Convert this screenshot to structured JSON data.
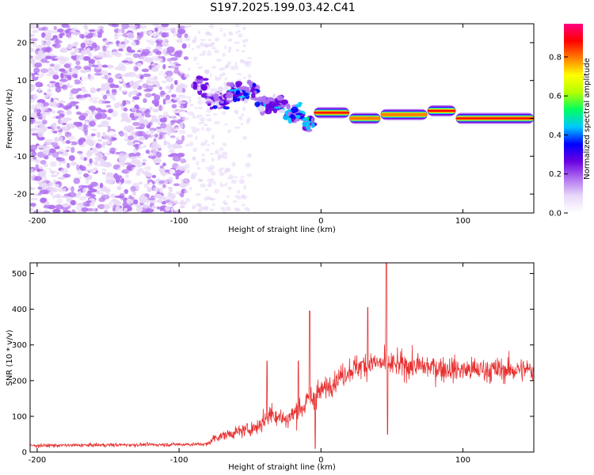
{
  "title": "S197.2025.199.03.42.C41",
  "colorbar": {
    "label": "Normalized spectral amplitude",
    "ticks": [
      0.0,
      0.2,
      0.4,
      0.6,
      0.8
    ],
    "tick_labels": [
      "0.0",
      "0.2",
      "0.4",
      "0.6",
      "0.8"
    ],
    "range": [
      0,
      0.97
    ],
    "colors": [
      "#ffffff",
      "#e8d8f8",
      "#b070f0",
      "#6a00e0",
      "#0000ff",
      "#00c8ff",
      "#00ff60",
      "#b4ff00",
      "#ffff00",
      "#ff8000",
      "#ff0000",
      "#ff0080"
    ]
  },
  "chart_data": [
    {
      "type": "heatmap",
      "title": "",
      "xlabel": "Height of straight line (km)",
      "ylabel": "Frequency (Hz)",
      "xlim": [
        -205,
        150
      ],
      "ylim": [
        -25,
        25
      ],
      "xticks": [
        -200,
        -100,
        0,
        100
      ],
      "xtick_labels": [
        "-200",
        "-100",
        "0",
        "100"
      ],
      "yticks": [
        -20,
        -10,
        0,
        10,
        20
      ],
      "ytick_labels": [
        "-20",
        "-10",
        "0",
        "10",
        "20"
      ],
      "noise_region": {
        "x": [
          -205,
          -95
        ],
        "y": [
          -25,
          25
        ],
        "amplitude": 0.15
      },
      "tones": [
        {
          "x": [
            -90,
            -80
          ],
          "freq": 9,
          "amplitude": 0.25
        },
        {
          "x": [
            -80,
            -65
          ],
          "freq": 5,
          "amplitude": 0.3
        },
        {
          "x": [
            -65,
            -45
          ],
          "freq": 7,
          "amplitude": 0.35
        },
        {
          "x": [
            -45,
            -25
          ],
          "freq": 4,
          "amplitude": 0.35
        },
        {
          "x": [
            -25,
            -12
          ],
          "freq": 1,
          "amplitude": 0.4
        },
        {
          "x": [
            -12,
            -5
          ],
          "freq": -1,
          "amplitude": 0.45
        },
        {
          "x": [
            -5,
            20
          ],
          "freq": 1.5,
          "amplitude": 0.85
        },
        {
          "x": [
            20,
            42
          ],
          "freq": 0,
          "amplitude": 0.75
        },
        {
          "x": [
            42,
            75
          ],
          "freq": 1,
          "amplitude": 0.8
        },
        {
          "x": [
            75,
            95
          ],
          "freq": 2,
          "amplitude": 0.9
        },
        {
          "x": [
            95,
            150
          ],
          "freq": 0,
          "amplitude": 0.9
        }
      ]
    },
    {
      "type": "line",
      "title": "",
      "xlabel": "Height of straight line (km)",
      "ylabel": "SNR (10 * v/v)",
      "xlim": [
        -205,
        150
      ],
      "ylim": [
        0,
        530
      ],
      "xticks": [
        -200,
        -100,
        0,
        100
      ],
      "xtick_labels": [
        "-200",
        "-100",
        "0",
        "100"
      ],
      "yticks": [
        0,
        100,
        200,
        300,
        400,
        500
      ],
      "ytick_labels": [
        "0",
        "100",
        "200",
        "300",
        "400",
        "500"
      ],
      "line_color": "#e83030",
      "baseline": {
        "x": [
          -205,
          -80,
          -75,
          -55,
          -45,
          -35,
          -25,
          -15,
          0,
          20,
          35,
          50,
          70,
          100,
          150
        ],
        "y": [
          18,
          22,
          40,
          60,
          70,
          110,
          90,
          120,
          170,
          230,
          250,
          245,
          240,
          230,
          230
        ]
      },
      "spikes": [
        {
          "x": -8,
          "y": 395
        },
        {
          "x": -16,
          "y": 255
        },
        {
          "x": -38,
          "y": 255
        },
        {
          "x": 33,
          "y": 405
        },
        {
          "x": 46,
          "y": 530
        },
        {
          "x": -4,
          "y": 10
        },
        {
          "x": 47,
          "y": 50
        }
      ]
    }
  ]
}
